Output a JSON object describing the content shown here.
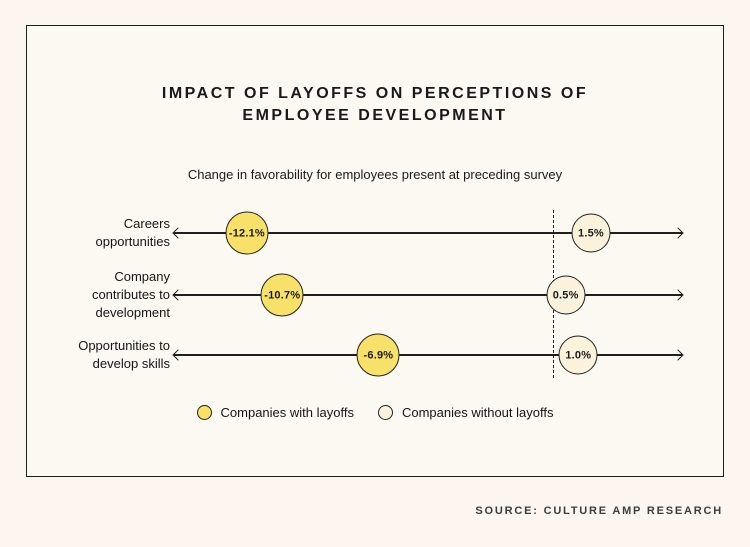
{
  "colors": {
    "page_background": "#FDF6F0",
    "panel_background": "#FCF8F2",
    "ink": "#1E1E1E",
    "with_layoffs_fill": "#F8E169",
    "without_layoffs_fill": "#FAF2DB"
  },
  "footer": {
    "source": "SOURCE: CULTURE AMP RESEARCH"
  },
  "chart_data": {
    "type": "dumbbell",
    "title": "IMPACT OF LAYOFFS ON PERCEPTIONS OF EMPLOYEE DEVELOPMENT",
    "subtitle": "Change in favorability for employees present at preceding survey",
    "categories": [
      "Careers\nopportunities",
      "Company\ncontributes to\ndevelopment",
      "Opportunities to\ndevelop skills"
    ],
    "series": [
      {
        "name": "Companies with layoffs",
        "color": "#F8E169",
        "values": [
          -12.1,
          -10.7,
          -6.9
        ],
        "labels": [
          "-12.1%",
          "-10.7%",
          "-6.9%"
        ]
      },
      {
        "name": "Companies without layoffs",
        "color": "#FAF2DB",
        "values": [
          1.5,
          0.5,
          1.0
        ],
        "labels": [
          "1.5%",
          "0.5%",
          "1.0%"
        ]
      }
    ],
    "value_suffix": "%",
    "zero_reference_line": 0,
    "axis_style": "horizontal-line-arrows-both-ends-per-category",
    "grid": "off",
    "legend_position": "bottom-center"
  }
}
